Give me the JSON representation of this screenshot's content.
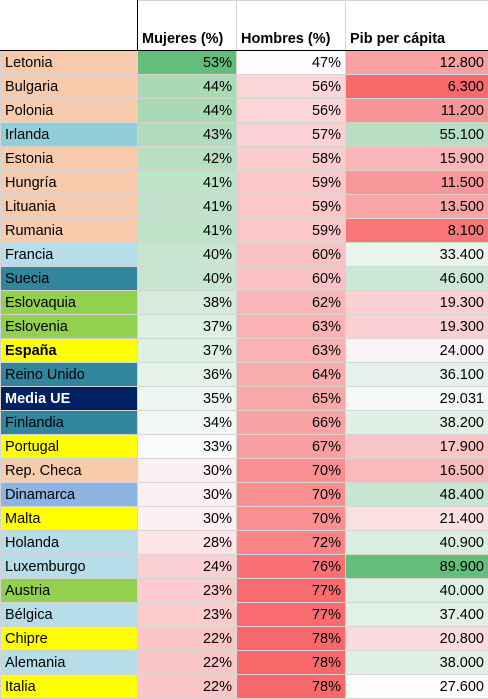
{
  "headers": {
    "country": "",
    "mujeres": "Mujeres (%)",
    "hombres": "Hombres (%)",
    "pib": "Pib per cápita"
  },
  "rows": [
    {
      "country": "Letonia",
      "mujeres": "53%",
      "hombres": "47%",
      "pib": "12.800",
      "c_country": "#f8cbad",
      "c_muj": "#63be7b",
      "c_hom": "#fcfcff",
      "c_pib": "#f8a0a2"
    },
    {
      "country": "Bulgaria",
      "mujeres": "44%",
      "hombres": "56%",
      "pib": "6.300",
      "c_country": "#f8cbad",
      "c_muj": "#a9d9b5",
      "c_hom": "#fbd5d8",
      "c_pib": "#f8696b"
    },
    {
      "country": "Polonia",
      "mujeres": "44%",
      "hombres": "56%",
      "pib": "11.200",
      "c_country": "#f8cbad",
      "c_muj": "#a9d9b5",
      "c_hom": "#fbd5d8",
      "c_pib": "#f89597"
    },
    {
      "country": "Irlanda",
      "mujeres": "43%",
      "hombres": "57%",
      "pib": "55.100",
      "c_country": "#92cddc",
      "c_muj": "#b1dcbd",
      "c_hom": "#fbd1d3",
      "c_pib": "#b8dfc3"
    },
    {
      "country": "Estonia",
      "mujeres": "42%",
      "hombres": "58%",
      "pib": "15.900",
      "c_country": "#f8cbad",
      "c_muj": "#b9dfc3",
      "c_hom": "#fbccce",
      "c_pib": "#f9b6b8"
    },
    {
      "country": " Hungría",
      "mujeres": "41%",
      "hombres": "59%",
      "pib": "11.500",
      "c_country": "#f8cbad",
      "c_muj": "#c0e2c9",
      "c_hom": "#fbc7c9",
      "c_pib": "#f89799"
    },
    {
      "country": "Lituania",
      "mujeres": "41%",
      "hombres": "59%",
      "pib": "13.500",
      "c_country": "#f8cbad",
      "c_muj": "#c0e2c9",
      "c_hom": "#fbc7c9",
      "c_pib": "#f9a5a7"
    },
    {
      "country": "Rumania",
      "mujeres": "41%",
      "hombres": "59%",
      "pib": "8.100",
      "c_country": "#f8cbad",
      "c_muj": "#c0e2c9",
      "c_hom": "#fbc7c9",
      "c_pib": "#f87678"
    },
    {
      "country": "Francia",
      "mujeres": "40%",
      "hombres": "60%",
      "pib": "33.400",
      "c_country": "#b7dde8",
      "c_muj": "#c8e5d0",
      "c_hom": "#fac2c4",
      "c_pib": "#ebf5f0"
    },
    {
      "country": "Suecia",
      "mujeres": "40%",
      "hombres": "60%",
      "pib": "46.600",
      "c_country": "#31859c",
      "c_muj": "#c8e5d0",
      "c_hom": "#fac2c4",
      "c_pib": "#cce7d5"
    },
    {
      "country": "Eslovaquia",
      "mujeres": "38%",
      "hombres": "62%",
      "pib": "19.300",
      "c_country": "#92d050",
      "c_muj": "#d6ebdc",
      "c_hom": "#fab7b9",
      "c_pib": "#fad0d2"
    },
    {
      "country": "Eslovenia",
      "mujeres": "37%",
      "hombres": "63%",
      "pib": "19.300",
      "c_country": "#92d050",
      "c_muj": "#deefe3",
      "c_hom": "#fab2b4",
      "c_pib": "#fad0d2"
    },
    {
      "country": "España",
      "mujeres": "37%",
      "hombres": "63%",
      "pib": "24.000",
      "c_country": "#ffff00",
      "c_muj": "#deefe3",
      "c_hom": "#fab2b4",
      "c_pib": "#fbf4f7",
      "bold": true
    },
    {
      "country": "Reino Unido",
      "mujeres": "36%",
      "hombres": "64%",
      "pib": "36.100",
      "c_country": "#31859c",
      "c_muj": "#e5f2e9",
      "c_hom": "#faadaf",
      "c_pib": "#e5f2eb"
    },
    {
      "country": "Media UE",
      "mujeres": "35%",
      "hombres": "65%",
      "pib": "29.031",
      "c_country": "#002060",
      "c_muj": "#ecf5ef",
      "c_hom": "#f9a8aa",
      "c_pib": "#f4f9f6",
      "bold": true,
      "white": true
    },
    {
      "country": "Finlandia",
      "mujeres": "34%",
      "hombres": "66%",
      "pib": "38.200",
      "c_country": "#31859c",
      "c_muj": "#f3f8f5",
      "c_hom": "#f9a3a5",
      "c_pib": "#e0f0e6"
    },
    {
      "country": "Portugal",
      "mujeres": "33%",
      "hombres": "67%",
      "pib": "17.900",
      "c_country": "#ffff00",
      "c_muj": "#f9fbfa",
      "c_hom": "#f99ea0",
      "c_pib": "#fac5c7"
    },
    {
      "country": "Rep. Checa",
      "mujeres": "30%",
      "hombres": "70%",
      "pib": "16.500",
      "c_country": "#f8cbad",
      "c_muj": "#fcf0f2",
      "c_hom": "#f98f91",
      "c_pib": "#f9baBc"
    },
    {
      "country": "Dinamarca",
      "mujeres": "30%",
      "hombres": "70%",
      "pib": "48.400",
      "c_country": "#8db4e2",
      "c_muj": "#fcf0f2",
      "c_hom": "#f98f91",
      "c_pib": "#c8e5d1"
    },
    {
      "country": "Malta",
      "mujeres": "30%",
      "hombres": "70%",
      "pib": "21.400",
      "c_country": "#ffff00",
      "c_muj": "#fcf0f2",
      "c_hom": "#f98f91",
      "c_pib": "#fbe0e2"
    },
    {
      "country": "Holanda",
      "mujeres": "28%",
      "hombres": "72%",
      "pib": "40.900",
      "c_country": "#b7dde8",
      "c_muj": "#fce5e7",
      "c_hom": "#f98587",
      "c_pib": "#daede1"
    },
    {
      "country": "Luxemburgo",
      "mujeres": "24%",
      "hombres": "76%",
      "pib": "89.900",
      "c_country": "#b7dde8",
      "c_muj": "#fbd0d2",
      "c_hom": "#f87174",
      "c_pib": "#63be7b"
    },
    {
      "country": "Austria",
      "mujeres": "23%",
      "hombres": "77%",
      "pib": "40.000",
      "c_country": "#92d050",
      "c_muj": "#fbcbcd",
      "c_hom": "#f86c6f",
      "c_pib": "#dcefe3"
    },
    {
      "country": "Bélgica",
      "mujeres": "23%",
      "hombres": "77%",
      "pib": "37.400",
      "c_country": "#b7dde8",
      "c_muj": "#fbcbcd",
      "c_hom": "#f86c6f",
      "c_pib": "#e2f1e8"
    },
    {
      "country": "Chipre",
      "mujeres": "22%",
      "hombres": "78%",
      "pib": "20.800",
      "c_country": "#ffff00",
      "c_muj": "#fbc6c8",
      "c_hom": "#f8696b",
      "c_pib": "#fbdcde"
    },
    {
      "country": "Alemania",
      "mujeres": "22%",
      "hombres": "78%",
      "pib": "38.000",
      "c_country": "#b7dde8",
      "c_muj": "#fbc6c8",
      "c_hom": "#f8696b",
      "c_pib": "#e0f0e7"
    },
    {
      "country": "Italia",
      "mujeres": "22%",
      "hombres": "78%",
      "pib": "27.600",
      "c_country": "#ffff00",
      "c_muj": "#fbc6c8",
      "c_hom": "#f8696b",
      "c_pib": "#fcfcff"
    }
  ]
}
